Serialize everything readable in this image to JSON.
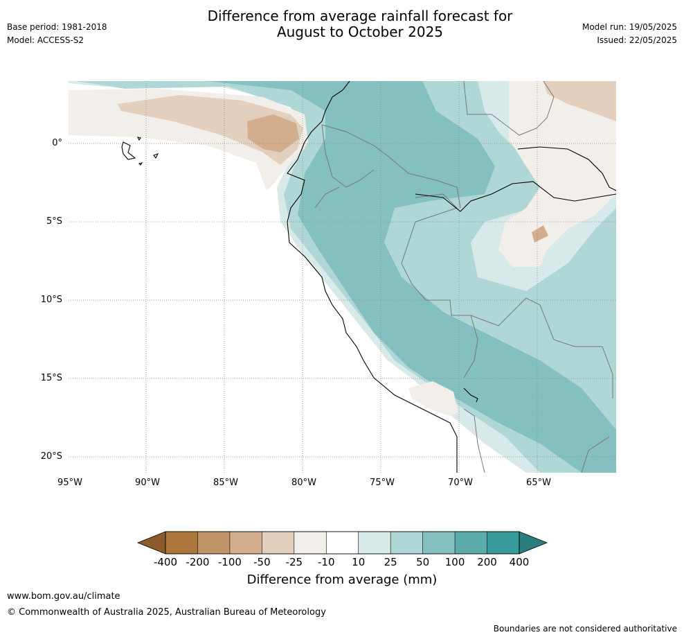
{
  "header": {
    "base_period": "Base period: 1981-2018",
    "model": "Model: ACCESS-S2",
    "title_line1": "Difference from average rainfall forecast for",
    "title_line2": "August to October 2025",
    "model_run": "Model run: 19/05/2025",
    "issued": "Issued: 22/05/2025"
  },
  "map": {
    "lat_labels": [
      "0°",
      "5°S",
      "10°S",
      "15°S",
      "20°S"
    ],
    "lon_labels": [
      "95°W",
      "90°W",
      "85°W",
      "80°W",
      "75°W",
      "70°W",
      "65°W"
    ],
    "extent": {
      "lon": [
        -95,
        -60
      ],
      "lat": [
        -21,
        4
      ]
    }
  },
  "colorbar": {
    "title": "Difference from average (mm)",
    "ticks": [
      "-400",
      "-200",
      "-100",
      "-50",
      "-25",
      "-10",
      "10",
      "25",
      "50",
      "100",
      "200",
      "400"
    ],
    "colors": [
      "#8c5a2b",
      "#ad773e",
      "#c19468",
      "#d2ae8e",
      "#e2cfbe",
      "#f2eee9",
      "#ffffff",
      "#d7eae9",
      "#afd7d6",
      "#84c0bf",
      "#5cacab",
      "#359a98",
      "#2a7f7e"
    ]
  },
  "footer": {
    "website": "www.bom.gov.au/climate",
    "copyright": "© Commonwealth of Australia 2025, Australian Bureau of Meteorology",
    "disclaimer": "Boundaries are not considered authoritative"
  }
}
